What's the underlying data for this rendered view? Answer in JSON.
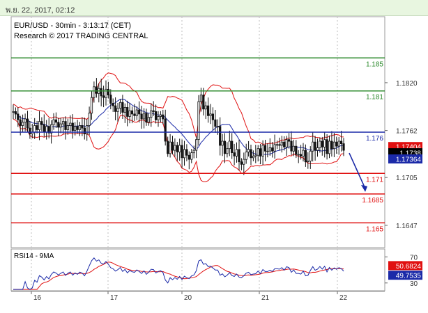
{
  "header": {
    "timestamp": "พ.ย. 22, 2017, 02:12"
  },
  "chart_data": [
    {
      "type": "line",
      "subtype": "candlestick-with-bollinger-bands",
      "title": "EUR/USD - 30min - 3:13:17 (CET)",
      "subtitle": "Research © 2017 TRADING CENTRAL",
      "x_ticks": [
        "16",
        "17",
        "20",
        "21",
        "22"
      ],
      "y_ticks": [
        "1.1820",
        "1.1762",
        "1.1705",
        "1.1647"
      ],
      "ylim": [
        1.162,
        1.19
      ],
      "levels": [
        {
          "label": "1.185",
          "value": 1.185,
          "color": "#2e8b2e"
        },
        {
          "label": "1.181",
          "value": 1.181,
          "color": "#2e8b2e"
        },
        {
          "label": "1.176",
          "value": 1.176,
          "color": "#1b2aa8"
        },
        {
          "label": "1.171",
          "value": 1.171,
          "color": "#e01010"
        },
        {
          "label": "1.1685",
          "value": 1.1685,
          "color": "#e01010"
        },
        {
          "label": "1.165",
          "value": 1.165,
          "color": "#e01010"
        }
      ],
      "price_tags": [
        {
          "label": "1.17404",
          "value": 1.17404,
          "color": "#e01010"
        },
        {
          "label": "1.1738",
          "value": 1.1738,
          "color": "#000000"
        },
        {
          "label": "1.17364",
          "value": 1.17364,
          "color": "#1b2aa8"
        }
      ],
      "close_series": [
        1.1785,
        1.1782,
        1.1775,
        1.1768,
        1.1772,
        1.1776,
        1.1765,
        1.1758,
        1.176,
        1.1768,
        1.1763,
        1.1773,
        1.1769,
        1.176,
        1.1767,
        1.1759,
        1.1769,
        1.1775,
        1.1772,
        1.1766,
        1.177,
        1.1773,
        1.1763,
        1.1768,
        1.1771,
        1.1762,
        1.1767,
        1.1763,
        1.1768,
        1.1765,
        1.1758,
        1.1768,
        1.1783,
        1.1802,
        1.1815,
        1.1807,
        1.1813,
        1.1804,
        1.1802,
        1.1812,
        1.1805,
        1.1795,
        1.1792,
        1.1785,
        1.1789,
        1.1796,
        1.1784,
        1.179,
        1.1779,
        1.1786,
        1.1782,
        1.178,
        1.1787,
        1.1782,
        1.1776,
        1.1783,
        1.1772,
        1.1778,
        1.1786,
        1.1785,
        1.1775,
        1.1779,
        1.1781,
        1.1776,
        1.1749,
        1.1734,
        1.1748,
        1.1738,
        1.1744,
        1.1736,
        1.1744,
        1.1729,
        1.1739,
        1.1732,
        1.1727,
        1.1735,
        1.1738,
        1.1751,
        1.1797,
        1.1805,
        1.1788,
        1.1792,
        1.178,
        1.1782,
        1.1775,
        1.1767,
        1.1767,
        1.1744,
        1.1749,
        1.1734,
        1.174,
        1.1749,
        1.1735,
        1.1731,
        1.1739,
        1.1724,
        1.1721,
        1.1727,
        1.1736,
        1.1739,
        1.1729,
        1.1731,
        1.1732,
        1.174,
        1.1731,
        1.1744,
        1.1737,
        1.1737,
        1.1741,
        1.1737,
        1.1745,
        1.1745,
        1.1744,
        1.1748,
        1.1742,
        1.1751,
        1.1749,
        1.1737,
        1.1743,
        1.1733,
        1.1733,
        1.1731,
        1.1738,
        1.1724,
        1.1725,
        1.1737,
        1.1748,
        1.1738,
        1.1741,
        1.1749,
        1.1742,
        1.1751,
        1.1734,
        1.1749,
        1.174,
        1.1748,
        1.1743,
        1.1749,
        1.1746,
        1.1738
      ],
      "forecast_arrow": {
        "from": 1.1738,
        "to": 1.1685,
        "color": "#1b2aa8"
      }
    },
    {
      "type": "line",
      "title": "RSI14 - 9MA",
      "x_ticks": [
        "16",
        "17",
        "20",
        "21",
        "22"
      ],
      "y_ticks": [
        "70",
        "30"
      ],
      "ylim": [
        18,
        82
      ],
      "value_tags": [
        {
          "label": "50.6824",
          "value": 50.6824,
          "color": "#e01010"
        },
        {
          "label": "49.7535",
          "value": 49.7535,
          "color": "#1b2aa8"
        }
      ]
    }
  ]
}
